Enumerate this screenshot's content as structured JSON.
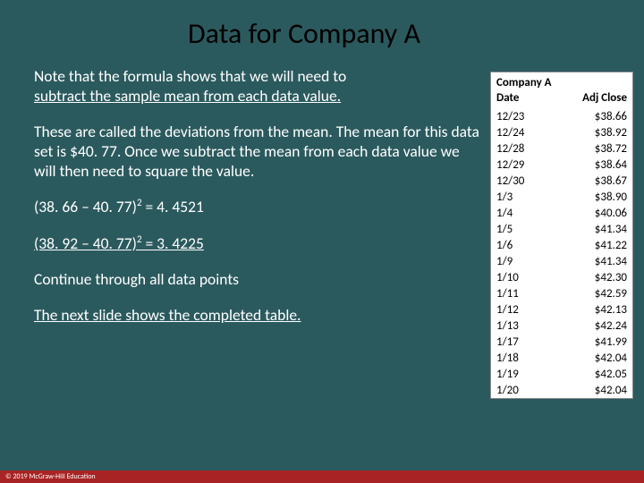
{
  "title": "Data for Company A",
  "para1a": "Note that the formula shows that we will need to",
  "para1b": "subtract the sample mean from each data value.",
  "para2": "These are called the deviations from the mean. The mean for this data set is $40. 77. Once we subtract the mean from each data value we will then need to square the value.",
  "calc1_pre": "(38. 66 – 40. 77)",
  "calc1_post": " = 4. 4521",
  "calc2_pre": "(38. 92 – 40. 77)",
  "calc2_post": " = 3. 4225",
  "para3": "Continue through all data points",
  "para4": "The next slide shows the completed table.",
  "sup": "2",
  "table": {
    "hdr": "Company A",
    "col1": "Date",
    "col2": "Adj Close",
    "rows": [
      [
        "12/23",
        "$38.66"
      ],
      [
        "12/24",
        "$38.92"
      ],
      [
        "12/28",
        "$38.72"
      ],
      [
        "12/29",
        "$38.64"
      ],
      [
        "12/30",
        "$38.67"
      ],
      [
        "1/3",
        "$38.90"
      ],
      [
        "1/4",
        "$40.06"
      ],
      [
        "1/5",
        "$41.34"
      ],
      [
        "1/6",
        "$41.22"
      ],
      [
        "1/9",
        "$41.34"
      ],
      [
        "1/10",
        "$42.30"
      ],
      [
        "1/11",
        "$42.59"
      ],
      [
        "1/12",
        "$42.13"
      ],
      [
        "1/13",
        "$42.24"
      ],
      [
        "1/17",
        "$41.99"
      ],
      [
        "1/18",
        "$42.04"
      ],
      [
        "1/19",
        "$42.05"
      ],
      [
        "1/20",
        "$42.04"
      ]
    ]
  },
  "footer": "© 2019 McGraw-Hill Education",
  "colors": {
    "bg": "#2b5a5e",
    "footer": "#a82323",
    "table_bg": "#ffffff"
  }
}
